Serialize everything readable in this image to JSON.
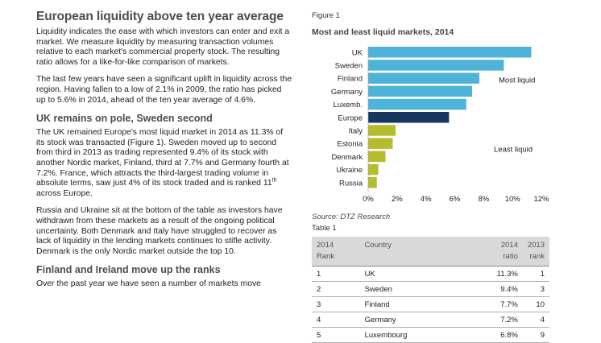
{
  "article": {
    "title": "European liquidity above ten year average",
    "para1": "Liquidity indicates the ease with which investors can enter and exit a market. We measure liquidity by measuring transaction volumes relative to each market's commercial property stock. The resulting ratio allows for a like-for-like comparison of markets.",
    "para2": "The last few years have seen a significant uplift in liquidity across the region. Having fallen to a low of 2.1% in 2009, the ratio has picked up to 5.6% in 2014, ahead of the ten year average of 4.6%.",
    "heading2": "UK remains on pole, Sweden second",
    "para3_before_sup": "The UK remained Europe's most liquid market in 2014 as 11.3% of its stock was transacted (Figure 1). Sweden moved up to second from third in 2013 as trading represented 9.4% of its stock with another Nordic market, Finland, third at 7.7% and Germany fourth at 7.2%. France, which attracts the third-largest trading volume in absolute terms, saw just 4% of its stock traded and is ranked 11",
    "para3_sup": "th",
    "para3_after_sup": " across Europe.",
    "para4": "Russia and Ukraine sit at the bottom of the table as investors have withdrawn from these markets as a result of the ongoing political uncertainty. Both Denmark and Italy have struggled to recover as lack of liquidity in the lending markets continues to stifle activity. Denmark is the only Nordic market outside the top 10.",
    "heading3": "Finland and Ireland move up the ranks",
    "para5": "Over the past year we have seen a number of markets move"
  },
  "figure": {
    "label": "Figure 1",
    "title": "Most and least liquid markets, 2014",
    "source": "Source: DTZ Research",
    "annotation_most": "Most liquid",
    "annotation_least": "Least liquid"
  },
  "chart_data": {
    "type": "bar",
    "orientation": "horizontal",
    "title": "Most and least liquid markets, 2014",
    "categories": [
      "UK",
      "Sweden",
      "Finland",
      "Germany",
      "Luxemb.",
      "Europe",
      "Italy",
      "Estonia",
      "Denmark",
      "Ukraine",
      "Russia"
    ],
    "values": [
      11.3,
      9.4,
      7.7,
      7.2,
      6.8,
      5.6,
      1.9,
      1.7,
      1.2,
      0.7,
      0.6
    ],
    "groups": [
      "most",
      "most",
      "most",
      "most",
      "most",
      "average",
      "least",
      "least",
      "least",
      "least",
      "least"
    ],
    "colors": {
      "most": "#4fb3d9",
      "average": "#17375e",
      "least": "#b5bd2e"
    },
    "xlim": [
      0,
      12
    ],
    "xticks": [
      "0%",
      "2%",
      "4%",
      "6%",
      "8%",
      "10%",
      "12%"
    ],
    "xtick_values": [
      0,
      2,
      4,
      6,
      8,
      10,
      12
    ],
    "xlabel": "",
    "ylabel": ""
  },
  "table": {
    "label": "Table 1",
    "headers": {
      "c1": "2014",
      "c1b": "Rank",
      "c2": "Country",
      "c3": "2014",
      "c3b": "ratio",
      "c4": "2013",
      "c4b": "rank"
    },
    "rows": [
      {
        "rank": "1",
        "country": "UK",
        "ratio": "11.3%",
        "prev": "1"
      },
      {
        "rank": "2",
        "country": "Sweden",
        "ratio": "9.4%",
        "prev": "3"
      },
      {
        "rank": "3",
        "country": "Finland",
        "ratio": "7.7%",
        "prev": "10"
      },
      {
        "rank": "4",
        "country": "Germany",
        "ratio": "7.2%",
        "prev": "4"
      },
      {
        "rank": "5",
        "country": "Luxembourg",
        "ratio": "6.8%",
        "prev": "9"
      }
    ]
  }
}
